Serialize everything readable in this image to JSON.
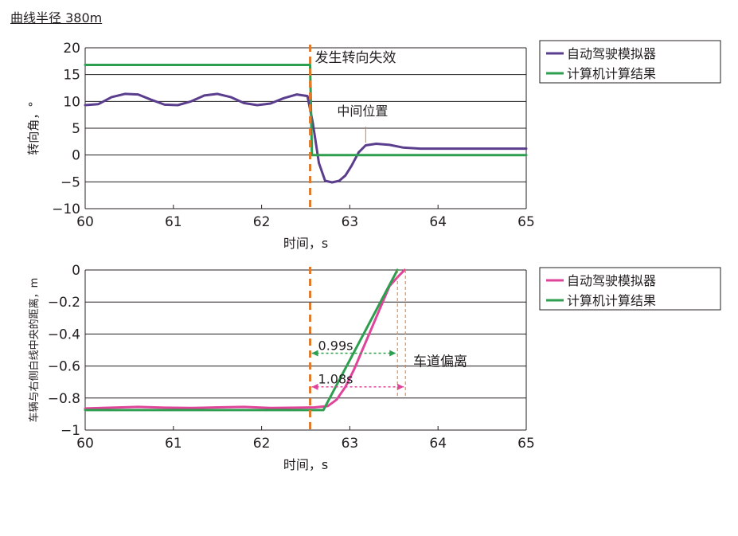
{
  "caption": "曲线半径 380m",
  "colors": {
    "purple": "#5a3d8c",
    "green": "#2e9e4f",
    "pink": "#e0449a",
    "orange": "#e07b2e",
    "grid": "#231f20"
  },
  "chart_data": [
    {
      "type": "line",
      "title": "",
      "xlabel": "时间，s",
      "ylabel": "转向角，°",
      "xlim": [
        60,
        65
      ],
      "ylim": [
        -10,
        20
      ],
      "xticks": [
        "60",
        "61",
        "62",
        "63",
        "64",
        "65"
      ],
      "yticks": [
        "20",
        "15",
        "10",
        "5",
        "0",
        "−5",
        "−10"
      ],
      "grid": "horizontal",
      "legend_position": "right",
      "event_line": {
        "x": 62.55,
        "label": "发生转向失效"
      },
      "annotations": [
        {
          "text": "中间位置",
          "x": 63.18,
          "y": 2
        }
      ],
      "series": [
        {
          "name": "自动驾驶模拟器",
          "color": "purple",
          "x": [
            60.0,
            60.15,
            60.3,
            60.45,
            60.6,
            60.75,
            60.9,
            61.05,
            61.2,
            61.35,
            61.5,
            61.65,
            61.8,
            61.95,
            62.1,
            62.25,
            62.4,
            62.52,
            62.58,
            62.65,
            62.72,
            62.8,
            62.88,
            62.95,
            63.02,
            63.1,
            63.18,
            63.3,
            63.45,
            63.6,
            63.8,
            64.0,
            64.5,
            65.0
          ],
          "y": [
            9.3,
            9.5,
            10.8,
            11.4,
            11.3,
            10.3,
            9.4,
            9.3,
            10.0,
            11.1,
            11.4,
            10.8,
            9.7,
            9.3,
            9.6,
            10.6,
            11.3,
            11.0,
            6.0,
            -1.5,
            -4.8,
            -5.1,
            -4.8,
            -3.8,
            -2.0,
            0.5,
            1.8,
            2.1,
            1.9,
            1.4,
            1.2,
            1.2,
            1.2,
            1.2
          ]
        },
        {
          "name": "计算机计算结果",
          "color": "green",
          "x": [
            60.0,
            62.55,
            62.57,
            65.0
          ],
          "y": [
            16.8,
            16.8,
            0.0,
            0.0
          ]
        }
      ]
    },
    {
      "type": "line",
      "title": "",
      "xlabel": "时间，s",
      "ylabel": "车辆与右侧白线中央的距离，m",
      "xlim": [
        60,
        65
      ],
      "ylim": [
        -1,
        0
      ],
      "xticks": [
        "60",
        "61",
        "62",
        "63",
        "64",
        "65"
      ],
      "yticks": [
        "0",
        "−0.2",
        "−0.4",
        "−0.6",
        "−0.8",
        "−1"
      ],
      "grid": "horizontal",
      "legend_position": "right",
      "event_line": {
        "x": 62.55
      },
      "annotations": [
        {
          "text": "0.99s",
          "x_start": 62.55,
          "x_end": 63.54,
          "y": -0.52
        },
        {
          "text": "1.08s",
          "x_start": 62.55,
          "x_end": 63.63,
          "y": -0.73
        },
        {
          "text": "车道偏离",
          "x": 63.7,
          "y": -0.57
        }
      ],
      "series": [
        {
          "name": "自动驾驶模拟器",
          "color": "pink",
          "x": [
            60.0,
            60.3,
            60.6,
            60.9,
            61.2,
            61.5,
            61.8,
            62.1,
            62.4,
            62.6,
            62.75,
            62.85,
            62.95,
            63.05,
            63.15,
            63.25,
            63.35,
            63.45,
            63.55,
            63.62
          ],
          "y": [
            -0.865,
            -0.86,
            -0.855,
            -0.86,
            -0.862,
            -0.858,
            -0.855,
            -0.862,
            -0.86,
            -0.858,
            -0.85,
            -0.81,
            -0.73,
            -0.62,
            -0.49,
            -0.36,
            -0.23,
            -0.1,
            -0.04,
            0.0
          ]
        },
        {
          "name": "计算机计算结果",
          "color": "green",
          "x": [
            60.0,
            62.7,
            63.54
          ],
          "y": [
            -0.875,
            -0.875,
            0.0
          ]
        }
      ]
    }
  ]
}
